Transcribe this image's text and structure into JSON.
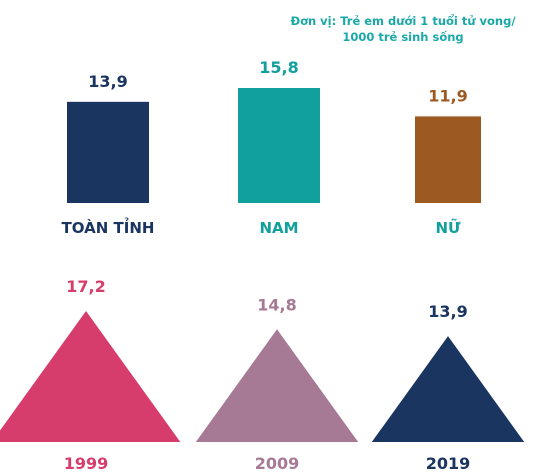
{
  "unit_note": [
    "Đơn vị: Trẻ em dưới 1 tuổi tử vong/",
    "1000 trẻ sinh sống"
  ],
  "chart_data": [
    {
      "type": "bar",
      "categories": [
        "TOÀN TỈNH",
        "NAM",
        "NỮ"
      ],
      "values": [
        13.9,
        15.8,
        11.9
      ],
      "value_labels": [
        "13,9",
        "15,8",
        "11,9"
      ],
      "colors": [
        "#1b3561",
        "#12a09c",
        "#9c5a22"
      ],
      "grid": false
    },
    {
      "type": "bar",
      "categories": [
        "1999",
        "2009",
        "2019"
      ],
      "values": [
        17.2,
        14.8,
        13.9
      ],
      "value_labels": [
        "17,2",
        "14,8",
        "13,9"
      ],
      "colors": [
        "#d63c6c",
        "#a67a95",
        "#1b3561"
      ],
      "marker": "triangle",
      "grid": false
    }
  ]
}
